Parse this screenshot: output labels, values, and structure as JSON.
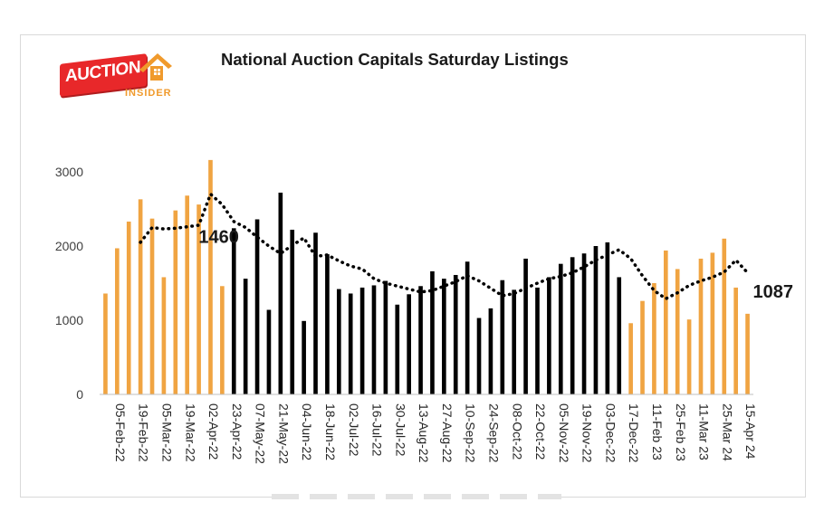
{
  "logo": {
    "main": "AUCTION",
    "sub": "INSIDER",
    "colors": {
      "red": "#e8282a",
      "orange": "#f09a2c"
    }
  },
  "chart_data": {
    "type": "bar",
    "title": "National Auction Capitals Saturday Listings",
    "xlabel": "",
    "ylabel": "",
    "ylim": [
      0,
      3000
    ],
    "yticks": [
      0,
      1000,
      2000,
      3000
    ],
    "grid": false,
    "legend": "none",
    "colors": {
      "highlight": "#f0a442",
      "default": "#000000",
      "trend": "#000000"
    },
    "x_tick_labels": [
      "05-Feb-22",
      "19-Feb-22",
      "05-Mar-22",
      "19-Mar-22",
      "02-Apr-22",
      "23-Apr-22",
      "07-May-22",
      "21-May-22",
      "04-Jun-22",
      "18-Jun-22",
      "02-Jul-22",
      "16-Jul-22",
      "30-Jul-22",
      "13-Aug-22",
      "27-Aug-22",
      "10-Sep-22",
      "24-Sep-22",
      "08-Oct-22",
      "22-Oct-22",
      "05-Nov-22",
      "19-Nov-22",
      "03-Dec-22",
      "17-Dec-22",
      "11-Feb 23",
      "25-Feb 23",
      "11-Mar 23",
      "25-Mar 24",
      "15-Apr 24"
    ],
    "values": [
      1360,
      1970,
      2330,
      2630,
      2370,
      1580,
      2480,
      2680,
      2560,
      3160,
      1460,
      2240,
      1560,
      2360,
      1140,
      2720,
      2220,
      990,
      2180,
      1890,
      1420,
      1360,
      1440,
      1470,
      1530,
      1210,
      1350,
      1460,
      1660,
      1560,
      1610,
      1790,
      1030,
      1160,
      1540,
      1410,
      1830,
      1440,
      1580,
      1760,
      1850,
      1900,
      2000,
      2050,
      1580,
      960,
      1260,
      1500,
      1940,
      1690,
      1010,
      1830,
      1910,
      2100,
      1440,
      1087
    ],
    "series_colors": [
      "o",
      "o",
      "o",
      "o",
      "o",
      "o",
      "o",
      "o",
      "o",
      "o",
      "o",
      "k",
      "k",
      "k",
      "k",
      "k",
      "k",
      "k",
      "k",
      "k",
      "k",
      "k",
      "k",
      "k",
      "k",
      "k",
      "k",
      "k",
      "k",
      "k",
      "k",
      "k",
      "k",
      "k",
      "k",
      "k",
      "k",
      "k",
      "k",
      "k",
      "k",
      "k",
      "k",
      "k",
      "k",
      "o",
      "o",
      "o",
      "o",
      "o",
      "o",
      "o",
      "o",
      "o",
      "o",
      "o"
    ],
    "trend": [
      null,
      null,
      null,
      2050,
      2250,
      2230,
      2240,
      2260,
      2280,
      2700,
      2560,
      2330,
      2250,
      2120,
      2000,
      1900,
      2010,
      2110,
      1860,
      1880,
      1800,
      1730,
      1690,
      1560,
      1500,
      1460,
      1420,
      1380,
      1400,
      1460,
      1520,
      1600,
      1530,
      1430,
      1330,
      1360,
      1430,
      1500,
      1560,
      1590,
      1640,
      1720,
      1810,
      1880,
      1950,
      1830,
      1600,
      1400,
      1290,
      1370,
      1470,
      1530,
      1580,
      1650,
      1810,
      1640
    ],
    "annotations": [
      {
        "text": "1460",
        "index": 10
      },
      {
        "text": "1087",
        "index": 55
      }
    ]
  }
}
